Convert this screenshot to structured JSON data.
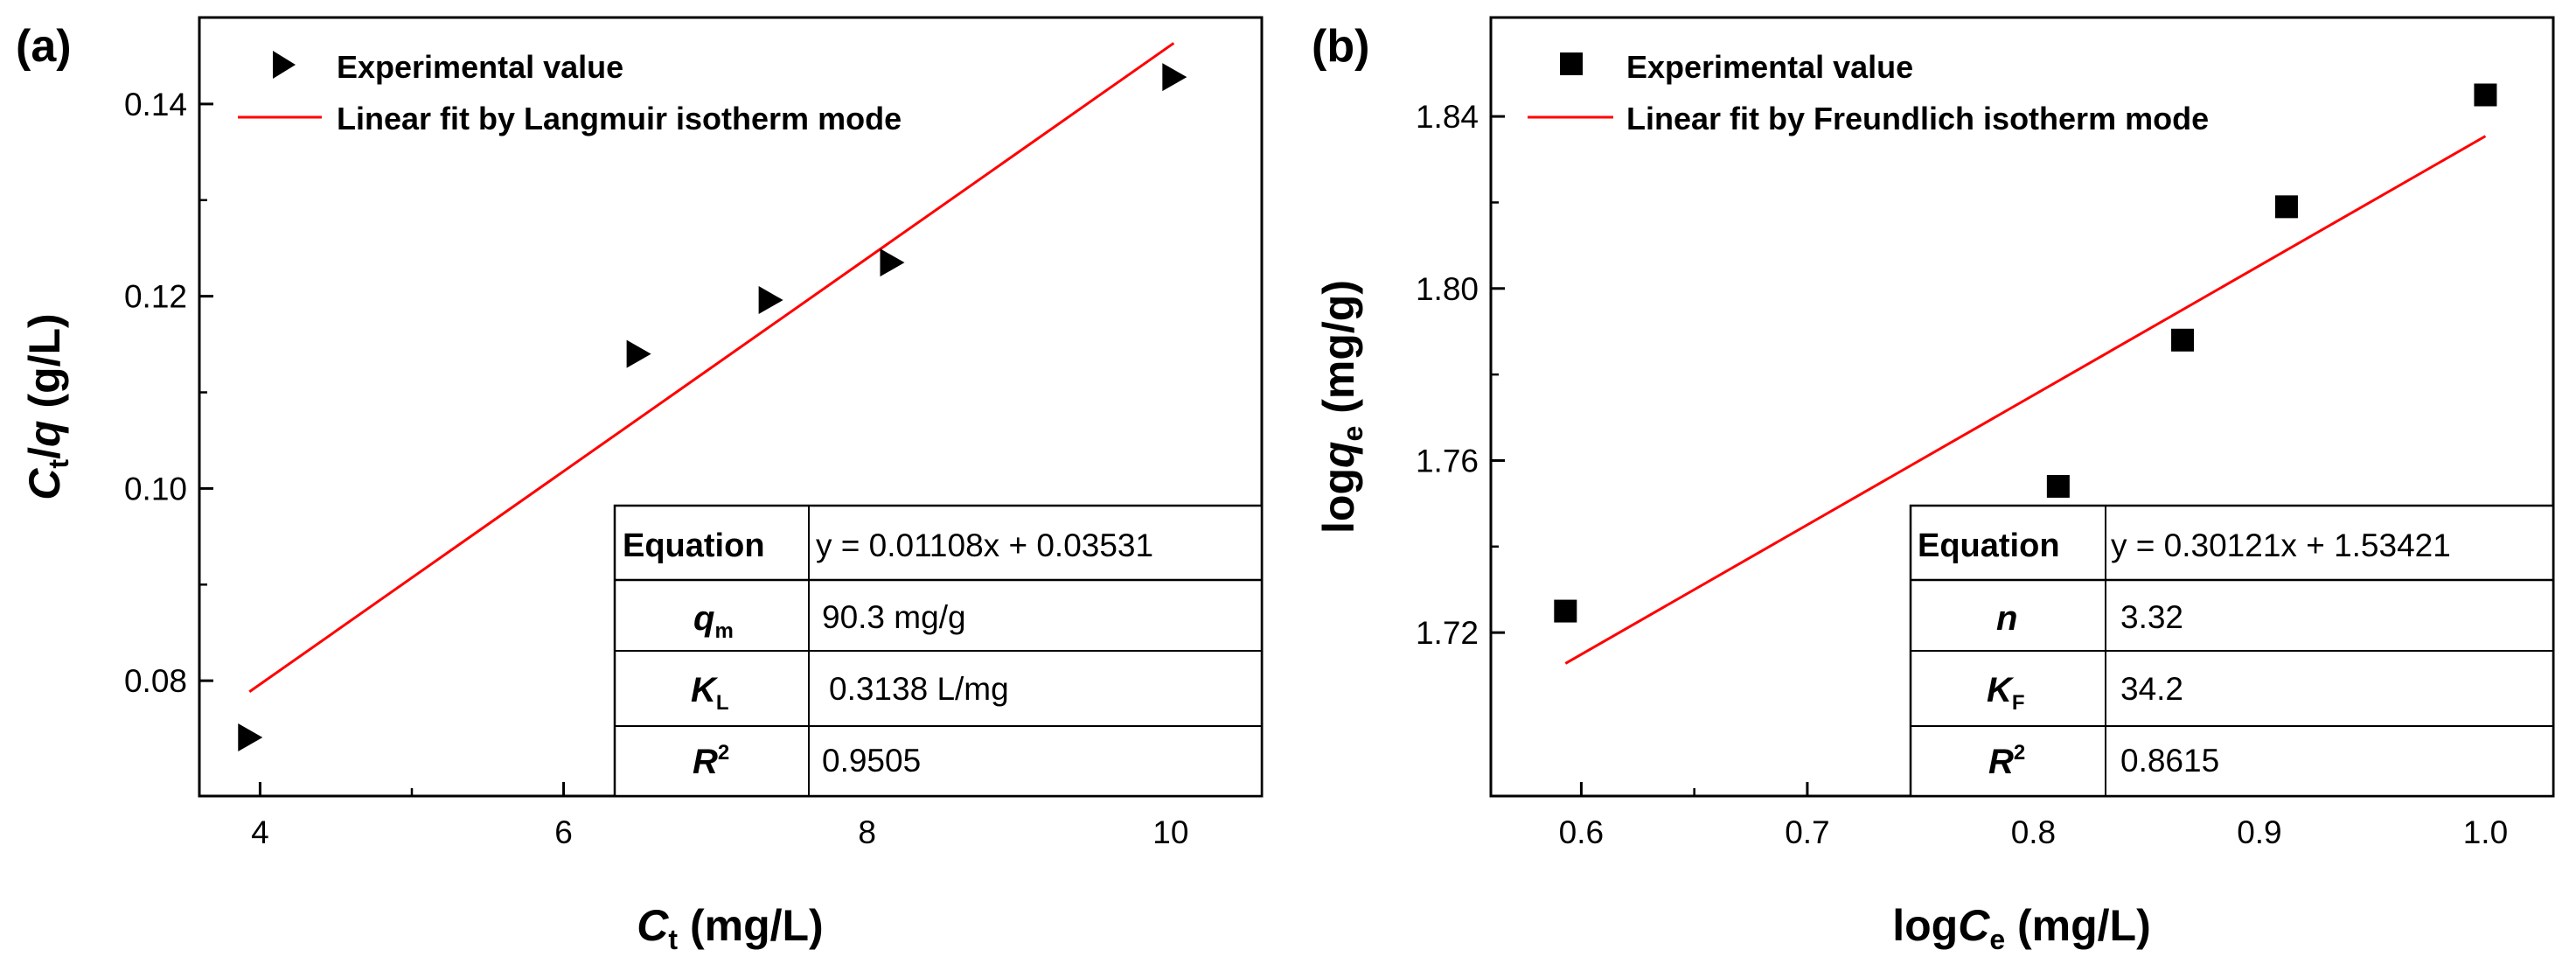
{
  "chart_data": [
    {
      "panel_label": "(a)",
      "type": "scatter",
      "marker": "triangle-right",
      "xlim": [
        3.6,
        10.6
      ],
      "ylim": [
        0.068,
        0.149
      ],
      "xticks": [
        4,
        6,
        8,
        10
      ],
      "xtick_labels": [
        "4",
        "6",
        "8",
        "10"
      ],
      "xminor": [
        5,
        7,
        9
      ],
      "yticks": [
        0.08,
        0.1,
        0.12,
        0.14
      ],
      "ytick_labels": [
        "0.08",
        "0.10",
        "0.12",
        "0.14"
      ],
      "yminor": [
        0.09,
        0.11,
        0.13
      ],
      "xlabel": {
        "main": "C",
        "sub": "t",
        "rest": " (mg/L)"
      },
      "ylabel": {
        "main": "C",
        "sub": "t",
        "mid": "/",
        "italic2": "q",
        "rest": " (g/L)"
      },
      "series": [
        {
          "name": "Experimental value",
          "x": [
            3.93,
            6.49,
            7.36,
            8.16,
            10.02
          ],
          "y": [
            0.0741,
            0.114,
            0.1196,
            0.1235,
            0.1428
          ]
        },
        {
          "name": "Linear fit by Langmuir isotherm mode",
          "type": "line",
          "color": "#ff0000",
          "slope": 0.01108,
          "intercept": 0.03531,
          "x_range": [
            3.93,
            10.02
          ]
        }
      ],
      "fit_table": {
        "equation_label": "Equation",
        "equation": "y = 0.01108x + 0.03531",
        "rows": [
          {
            "sym": "q",
            "sub": "m",
            "sup": "",
            "value": "90.3 mg/g"
          },
          {
            "sym": "K",
            "sub": "L",
            "sup": "",
            "value": "0.3138 L/mg"
          },
          {
            "sym": "R",
            "sub": "",
            "sup": "2",
            "value": "0.9505"
          }
        ]
      }
    },
    {
      "panel_label": "(b)",
      "type": "scatter",
      "marker": "square",
      "xlim": [
        0.56,
        1.03
      ],
      "ylim": [
        1.682,
        1.863
      ],
      "xticks": [
        0.6,
        0.7,
        0.8,
        0.9,
        1.0
      ],
      "xtick_labels": [
        "0.6",
        "0.7",
        "0.8",
        "0.9",
        "1.0"
      ],
      "xminor": [
        0.65,
        0.75,
        0.85,
        0.95
      ],
      "yticks": [
        1.72,
        1.76,
        1.8,
        1.84
      ],
      "ytick_labels": [
        "1.72",
        "1.76",
        "1.80",
        "1.84"
      ],
      "yminor": [
        1.74,
        1.78,
        1.82
      ],
      "xlabel": {
        "main": "log",
        "italic": "C",
        "sub": "e",
        "rest": " (mg/L)"
      },
      "ylabel": {
        "main": "log",
        "italic": "q",
        "sub": "e",
        "rest": " (mg/g)"
      },
      "series": [
        {
          "name": "Experimental value",
          "x": [
            0.593,
            0.811,
            0.866,
            0.912,
            1.0
          ],
          "y": [
            1.725,
            1.754,
            1.788,
            1.819,
            1.845
          ]
        },
        {
          "name": "Linear fit by Freundlich isotherm mode",
          "type": "line",
          "color": "#ff0000",
          "slope": 0.30121,
          "intercept": 1.53421,
          "x_range": [
            0.593,
            1.0
          ]
        }
      ],
      "fit_table": {
        "equation_label": "Equation",
        "equation": "y = 0.30121x + 1.53421",
        "rows": [
          {
            "sym": "n",
            "sub": "",
            "sup": "",
            "value": "3.32"
          },
          {
            "sym": "K",
            "sub": "F",
            "sup": "",
            "value": "34.2"
          },
          {
            "sym": "R",
            "sub": "",
            "sup": "2",
            "value": "0.8615"
          }
        ]
      }
    }
  ]
}
